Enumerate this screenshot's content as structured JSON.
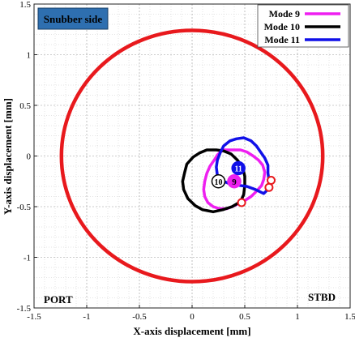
{
  "chart_data": {
    "type": "line",
    "xlabel": "X-axis displacement [mm]",
    "ylabel": "Y-axis displacement [mm]",
    "xlim": [
      -1.5,
      1.5
    ],
    "ylim": [
      -1.5,
      1.5
    ],
    "xticks": [
      -1.5,
      -1,
      -0.5,
      0,
      0.5,
      1,
      1.5
    ],
    "yticks": [
      -1.5,
      -1,
      -0.5,
      0,
      0.5,
      1,
      1.5
    ],
    "xtick_labels": [
      "-1.5",
      "-1",
      "-0.5",
      "0",
      "0.5",
      "1",
      "1.5"
    ],
    "ytick_labels": [
      "-1.5",
      "-1",
      "-0.5",
      "0",
      "0.5",
      "1",
      "1.5"
    ],
    "grid": true,
    "legend_position": "top-right",
    "clearance_circle": {
      "cx": 0,
      "cy": 0,
      "r": 1.24,
      "color": "#e8191d"
    },
    "series": [
      {
        "name": "Mode 9",
        "label": "9",
        "color": "#ee1ff0",
        "center": [
          0.38,
          -0.18
        ],
        "radius": 0.3,
        "marker": [
          0.4,
          -0.25
        ],
        "red_point": [
          0.75,
          -0.24
        ],
        "points": [
          [
            0.27,
            0.04
          ],
          [
            0.3,
            0.06
          ],
          [
            0.35,
            0.06
          ],
          [
            0.4,
            0.06
          ],
          [
            0.46,
            0.06
          ],
          [
            0.52,
            0.04
          ],
          [
            0.58,
            0.0
          ],
          [
            0.63,
            -0.04
          ],
          [
            0.67,
            -0.09
          ],
          [
            0.69,
            -0.16
          ],
          [
            0.68,
            -0.23
          ],
          [
            0.66,
            -0.29
          ],
          [
            0.6,
            -0.36
          ],
          [
            0.56,
            -0.4
          ],
          [
            0.5,
            -0.44
          ],
          [
            0.44,
            -0.47
          ],
          [
            0.38,
            -0.5
          ],
          [
            0.33,
            -0.52
          ],
          [
            0.26,
            -0.52
          ],
          [
            0.2,
            -0.5
          ],
          [
            0.15,
            -0.46
          ],
          [
            0.12,
            -0.4
          ],
          [
            0.11,
            -0.33
          ],
          [
            0.12,
            -0.25
          ],
          [
            0.14,
            -0.17
          ],
          [
            0.17,
            -0.1
          ],
          [
            0.21,
            -0.04
          ],
          [
            0.24,
            0.01
          ],
          [
            0.27,
            0.04
          ]
        ]
      },
      {
        "name": "Mode 10",
        "label": "10",
        "color": "#000000",
        "center": [
          0.2,
          -0.2
        ],
        "radius": 0.3,
        "marker": [
          0.25,
          -0.25
        ],
        "red_point": [
          0.47,
          -0.46
        ],
        "points": [
          [
            0.23,
            0.06
          ],
          [
            0.3,
            0.05
          ],
          [
            0.37,
            0.02
          ],
          [
            0.43,
            -0.04
          ],
          [
            0.48,
            -0.11
          ],
          [
            0.5,
            -0.2
          ],
          [
            0.5,
            -0.29
          ],
          [
            0.49,
            -0.38
          ],
          [
            0.46,
            -0.45
          ],
          [
            0.38,
            -0.5
          ],
          [
            0.29,
            -0.53
          ],
          [
            0.2,
            -0.55
          ],
          [
            0.1,
            -0.53
          ],
          [
            0.03,
            -0.49
          ],
          [
            -0.04,
            -0.42
          ],
          [
            -0.08,
            -0.33
          ],
          [
            -0.09,
            -0.25
          ],
          [
            -0.07,
            -0.16
          ],
          [
            -0.05,
            -0.08
          ],
          [
            0.01,
            -0.01
          ],
          [
            0.07,
            0.03
          ],
          [
            0.14,
            0.06
          ],
          [
            0.23,
            0.06
          ]
        ]
      },
      {
        "name": "Mode 11",
        "label": "11",
        "color": "#1010e8",
        "center": [
          0.5,
          -0.09
        ],
        "radius": 0.25,
        "marker": [
          0.44,
          -0.12
        ],
        "red_point": [
          0.73,
          -0.31
        ],
        "points": [
          [
            0.42,
            0.17
          ],
          [
            0.49,
            0.18
          ],
          [
            0.56,
            0.15
          ],
          [
            0.61,
            0.1
          ],
          [
            0.65,
            0.04
          ],
          [
            0.69,
            -0.02
          ],
          [
            0.72,
            -0.09
          ],
          [
            0.72,
            -0.17
          ],
          [
            0.73,
            -0.24
          ],
          [
            0.73,
            -0.32
          ],
          [
            0.68,
            -0.37
          ],
          [
            0.6,
            -0.33
          ],
          [
            0.52,
            -0.3
          ],
          [
            0.45,
            -0.29
          ],
          [
            0.37,
            -0.28
          ],
          [
            0.3,
            -0.25
          ],
          [
            0.24,
            -0.19
          ],
          [
            0.23,
            -0.11
          ],
          [
            0.24,
            -0.04
          ],
          [
            0.27,
            0.04
          ],
          [
            0.3,
            0.1
          ],
          [
            0.36,
            0.15
          ],
          [
            0.42,
            0.17
          ]
        ]
      }
    ],
    "annotations": {
      "top_left": "Snubber side",
      "bottom_left": "PORT",
      "bottom_right": "STBD"
    }
  }
}
